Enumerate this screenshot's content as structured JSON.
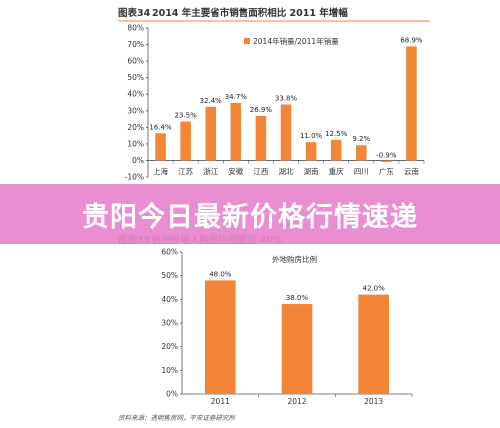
{
  "banner": {
    "text": "贵阳今日最新价格行情速递"
  },
  "colors": {
    "bar": "#F28538",
    "banner": "#E785CD"
  },
  "chart_data": [
    {
      "type": "bar",
      "title_prefix": "图表34",
      "title": "2014 年主要省市销售面积相比 2011 年增幅",
      "legend": "2014年销量/2011年销量",
      "categories": [
        "上海",
        "江苏",
        "浙江",
        "安徽",
        "江西",
        "湖北",
        "湖南",
        "重庆",
        "四川",
        "广东",
        "云南"
      ],
      "values": [
        16.4,
        23.5,
        32.4,
        34.7,
        26.9,
        33.8,
        11.0,
        12.5,
        9.2,
        -0.9,
        68.9
      ],
      "data_labels": [
        "16.4%",
        "23.5%",
        "32.4%",
        "34.7%",
        "26.9%",
        "33.8%",
        "11.0%",
        "12.5%",
        "9.2%",
        "-0.9%",
        "68.9%"
      ],
      "yticks": [
        "80%",
        "70%",
        "60%",
        "50%",
        "40%",
        "30%",
        "20%",
        "10%",
        "0%",
        "-10%"
      ],
      "ylim": [
        -10,
        80
      ]
    },
    {
      "type": "bar",
      "title_prefix": "图表35",
      "title": "杭州外地人购房比例超过 40%",
      "legend": "外地购房比例",
      "categories": [
        "2011",
        "2012",
        "2013"
      ],
      "values": [
        48.0,
        38.0,
        42.0
      ],
      "data_labels": [
        "48.0%",
        "38.0%",
        "42.0%"
      ],
      "yticks": [
        "60%",
        "50%",
        "40%",
        "30%",
        "20%",
        "10%",
        "0%"
      ],
      "ylim": [
        0,
        60
      ],
      "source": "资料来源：透明售房网，平安证券研究所"
    }
  ]
}
